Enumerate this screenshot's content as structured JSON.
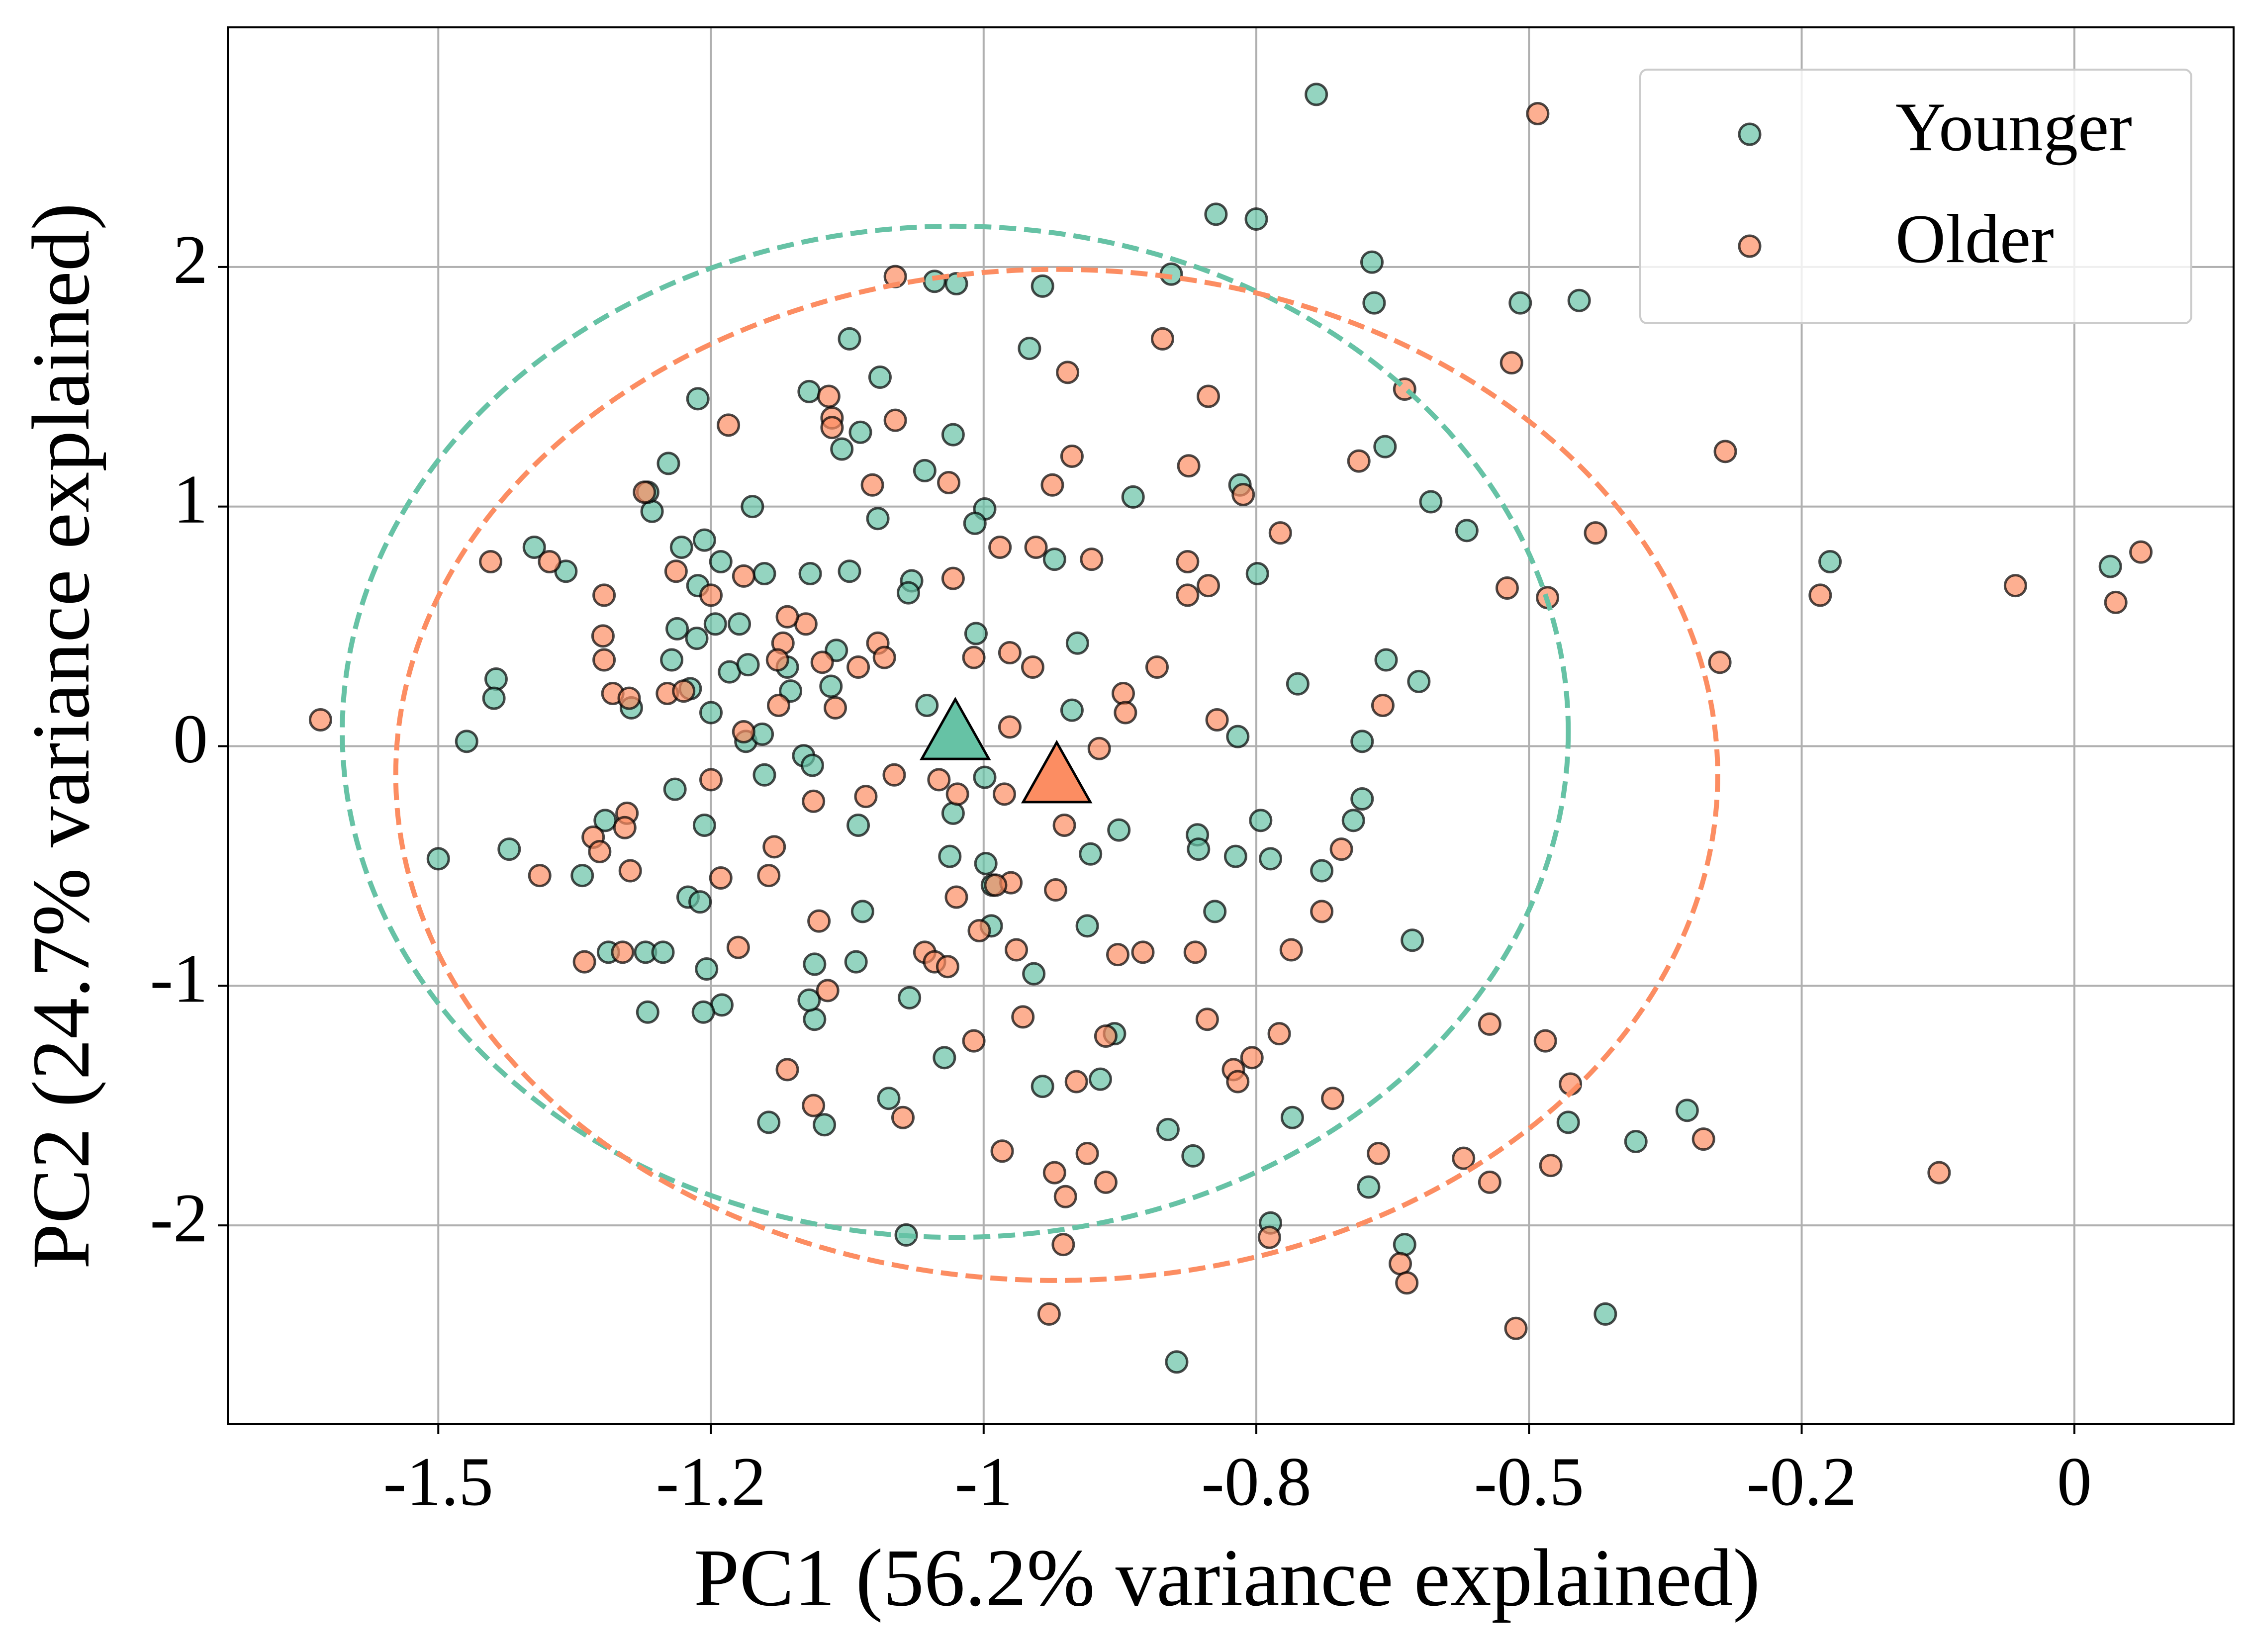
{
  "chart_data": {
    "type": "scatter",
    "xlabel": "PC1 (56.2% variance explained)",
    "ylabel": "PC2 (24.7% variance explained)",
    "xlim": [
      -1.693,
      0.146
    ],
    "ylim": [
      -2.83,
      3.0
    ],
    "xticks": [
      -1.5,
      {
        "value": -1.25,
        "label": "-1.2"
      },
      -1,
      {
        "value": -0.75,
        "label": "-0.8"
      },
      -0.5,
      {
        "value": -0.25,
        "label": "-0.2"
      },
      0
    ],
    "yticks": [
      -2,
      -1,
      0,
      1,
      2
    ],
    "grid": true,
    "legend": "upper right",
    "series": [
      {
        "name": "Younger",
        "color": "#66c2a5",
        "x": [
          -0.695,
          -0.787,
          -0.75,
          -0.644,
          -0.642,
          -0.828,
          -0.508,
          -0.454,
          -1.045,
          -1.025,
          -0.946,
          -1.123,
          -0.958,
          -1.16,
          -1.095,
          -1.113,
          -1.13,
          -1.028,
          -0.632,
          -1.262,
          -1.289,
          -1.054,
          -0.59,
          -0.557,
          -0.863,
          -0.765,
          -1.097,
          -0.999,
          -1.008,
          -1.212,
          -1.304,
          -1.308,
          -1.412,
          -1.383,
          -1.277,
          -1.256,
          -1.241,
          -1.201,
          -1.159,
          -1.123,
          -1.066,
          -1.069,
          -0.935,
          -0.914,
          -0.749,
          -0.224,
          0.033,
          -1.262,
          -1.263,
          -1.281,
          -1.286,
          -1.246,
          -1.224,
          -1.269,
          -1.233,
          -1.216,
          -1.18,
          -1.135,
          -1.177,
          -1.218,
          -1.203,
          -1.14,
          -1.25,
          -1.323,
          -1.447,
          -1.449,
          -1.474,
          -1.052,
          -1.007,
          -0.919,
          -0.631,
          -0.601,
          -0.712,
          -0.653,
          -0.767,
          -1.165,
          -1.157,
          -1.201,
          -1.283,
          -1.256,
          -0.999,
          -1.028,
          -1.115,
          -0.653,
          -0.661,
          -0.746,
          -0.804,
          -0.803,
          -0.769,
          -0.737,
          -0.69,
          -0.876,
          -0.902,
          -1.031,
          -0.998,
          -0.992,
          -1.347,
          -1.368,
          -1.435,
          -1.5,
          -1.271,
          -1.26,
          -1.31,
          -1.294,
          -1.344,
          -1.111,
          -1.155,
          -1.117,
          -1.254,
          -1.24,
          -1.257,
          -1.308,
          -1.155,
          -1.068,
          -0.954,
          -0.788,
          -0.905,
          -0.993,
          -0.607,
          -1.036,
          -1.16,
          -0.946,
          -0.893,
          -0.88,
          -1.087,
          -1.197,
          -1.146,
          -0.831,
          -0.808,
          -0.717,
          -0.647,
          -0.737,
          -0.464,
          -0.355,
          -0.402,
          -1.071,
          -0.614,
          -0.43,
          -0.823
        ],
        "values": [
          2.72,
          2.22,
          2.2,
          2.02,
          1.85,
          1.97,
          1.85,
          1.86,
          1.94,
          1.93,
          1.92,
          1.7,
          1.66,
          1.48,
          1.54,
          1.31,
          1.24,
          1.3,
          1.25,
          1.45,
          1.18,
          1.15,
          1.02,
          0.9,
          1.04,
          1.09,
          0.95,
          0.99,
          0.93,
          1.0,
          0.98,
          1.06,
          0.83,
          0.73,
          0.83,
          0.86,
          0.77,
          0.72,
          0.72,
          0.73,
          0.69,
          0.64,
          0.78,
          0.43,
          0.72,
          0.77,
          0.75,
          0.67,
          0.45,
          0.49,
          0.36,
          0.51,
          0.51,
          0.24,
          0.31,
          0.34,
          0.33,
          0.4,
          0.23,
          0.02,
          0.05,
          0.25,
          0.14,
          0.16,
          0.28,
          0.2,
          0.02,
          0.17,
          0.47,
          0.15,
          0.36,
          0.27,
          0.26,
          0.02,
          0.04,
          -0.04,
          -0.08,
          -0.12,
          -0.18,
          -0.33,
          -0.13,
          -0.28,
          -0.33,
          -0.22,
          -0.31,
          -0.31,
          -0.37,
          -0.43,
          -0.46,
          -0.47,
          -0.52,
          -0.35,
          -0.45,
          -0.46,
          -0.49,
          -0.58,
          -0.31,
          -0.54,
          -0.43,
          -0.47,
          -0.63,
          -0.65,
          -0.86,
          -0.86,
          -0.86,
          -0.69,
          -0.91,
          -0.9,
          -0.93,
          -1.08,
          -1.11,
          -1.11,
          -1.14,
          -1.05,
          -0.95,
          -0.69,
          -0.75,
          -0.75,
          -0.81,
          -1.3,
          -1.06,
          -1.42,
          -1.39,
          -1.2,
          -1.47,
          -1.57,
          -1.58,
          -1.6,
          -1.71,
          -1.55,
          -1.84,
          -1.99,
          -1.57,
          -1.52,
          -1.65,
          -2.04,
          -2.08,
          -2.37,
          -2.57
        ],
        "centroid": {
          "x": -1.026,
          "y": 0.04
        },
        "ellipse": {
          "cx": -1.026,
          "cy": 0.06,
          "rx": 0.562,
          "ry": 2.11
        }
      },
      {
        "name": "Older",
        "color": "#fc8d62",
        "x": [
          -0.492,
          -1.081,
          -0.836,
          -0.794,
          -0.614,
          -0.516,
          -0.32,
          -1.142,
          -1.139,
          -1.139,
          -1.081,
          -0.923,
          -1.234,
          -0.919,
          -0.656,
          -0.812,
          -1.102,
          -1.032,
          -0.937,
          -0.762,
          -1.311,
          -0.728,
          -0.439,
          -1.452,
          -1.398,
          -1.282,
          -0.952,
          -0.985,
          -0.901,
          -0.813,
          -1.348,
          -1.22,
          -1.25,
          -1.028,
          -0.813,
          -0.794,
          -0.52,
          -0.483,
          -0.233,
          -0.054,
          0.038,
          0.061,
          -1.349,
          -1.163,
          -1.18,
          -1.184,
          -1.097,
          -1.091,
          -1.115,
          -1.148,
          -1.189,
          -1.009,
          -0.976,
          -0.955,
          -0.841,
          -0.872,
          -0.87,
          -0.786,
          -0.634,
          -0.325,
          -1.348,
          -1.34,
          -1.325,
          -1.29,
          -1.275,
          -1.188,
          -1.136,
          -1.22,
          -0.894,
          -0.976,
          -1.041,
          -1.082,
          -1.156,
          -1.108,
          -1.25,
          -1.327,
          -1.329,
          -1.358,
          -1.352,
          -1.324,
          -1.407,
          -0.926,
          -1.024,
          -0.981,
          -1.608,
          -1.192,
          -1.241,
          -1.197,
          -0.975,
          -1.025,
          -0.934,
          -0.989,
          -1.151,
          -1.225,
          -1.054,
          -1.045,
          -1.033,
          -1.004,
          -0.97,
          -0.877,
          -0.854,
          -0.806,
          -0.718,
          -0.69,
          -0.672,
          -1.331,
          -1.366,
          -1.143,
          -0.964,
          -0.888,
          -0.729,
          -0.795,
          -0.536,
          -0.485,
          -1.009,
          -1.18,
          -1.156,
          -1.074,
          -0.915,
          -0.771,
          -0.767,
          -0.754,
          -0.68,
          -0.462,
          -0.983,
          -0.905,
          -0.935,
          -0.925,
          -0.888,
          -0.638,
          -0.56,
          -0.536,
          -0.48,
          -0.34,
          -0.124,
          -0.738,
          -0.927,
          -0.618,
          -0.612,
          -0.94,
          -0.512
        ],
        "values": [
          2.64,
          1.96,
          1.7,
          1.46,
          1.49,
          1.6,
          1.23,
          1.46,
          1.37,
          1.33,
          1.36,
          1.56,
          1.34,
          1.21,
          1.19,
          1.17,
          1.09,
          1.1,
          1.09,
          1.05,
          1.06,
          0.89,
          0.89,
          0.77,
          0.77,
          0.73,
          0.83,
          0.83,
          0.78,
          0.77,
          0.63,
          0.71,
          0.63,
          0.7,
          0.63,
          0.67,
          0.66,
          0.62,
          0.63,
          0.67,
          0.6,
          0.81,
          0.46,
          0.51,
          0.54,
          0.43,
          0.43,
          0.37,
          0.33,
          0.35,
          0.36,
          0.37,
          0.39,
          0.33,
          0.33,
          0.22,
          0.14,
          0.11,
          0.17,
          0.35,
          0.36,
          0.22,
          0.2,
          0.22,
          0.23,
          0.17,
          0.16,
          0.06,
          -0.01,
          0.08,
          -0.14,
          -0.12,
          -0.23,
          -0.21,
          -0.14,
          -0.28,
          -0.34,
          -0.38,
          -0.44,
          -0.52,
          -0.54,
          -0.33,
          -0.2,
          -0.2,
          0.11,
          -0.42,
          -0.55,
          -0.54,
          -0.57,
          -0.63,
          -0.6,
          -0.58,
          -0.73,
          -0.84,
          -0.86,
          -0.9,
          -0.92,
          -0.77,
          -0.85,
          -0.87,
          -0.86,
          -0.86,
          -0.85,
          -0.69,
          -0.43,
          -0.86,
          -0.9,
          -1.02,
          -1.13,
          -1.21,
          -1.2,
          -1.14,
          -1.16,
          -1.23,
          -1.23,
          -1.35,
          -1.5,
          -1.55,
          -1.4,
          -1.35,
          -1.4,
          -1.3,
          -1.47,
          -1.41,
          -1.69,
          -1.7,
          -1.78,
          -1.88,
          -1.82,
          -1.7,
          -1.72,
          -1.82,
          -1.75,
          -1.64,
          -1.78,
          -2.05,
          -2.08,
          -2.16,
          -2.24,
          -2.37,
          -2.43
        ],
        "centroid": {
          "x": -0.933,
          "y": -0.14
        },
        "ellipse": {
          "cx": -0.933,
          "cy": -0.12,
          "rx": 0.606,
          "ry": 2.11
        }
      }
    ]
  }
}
